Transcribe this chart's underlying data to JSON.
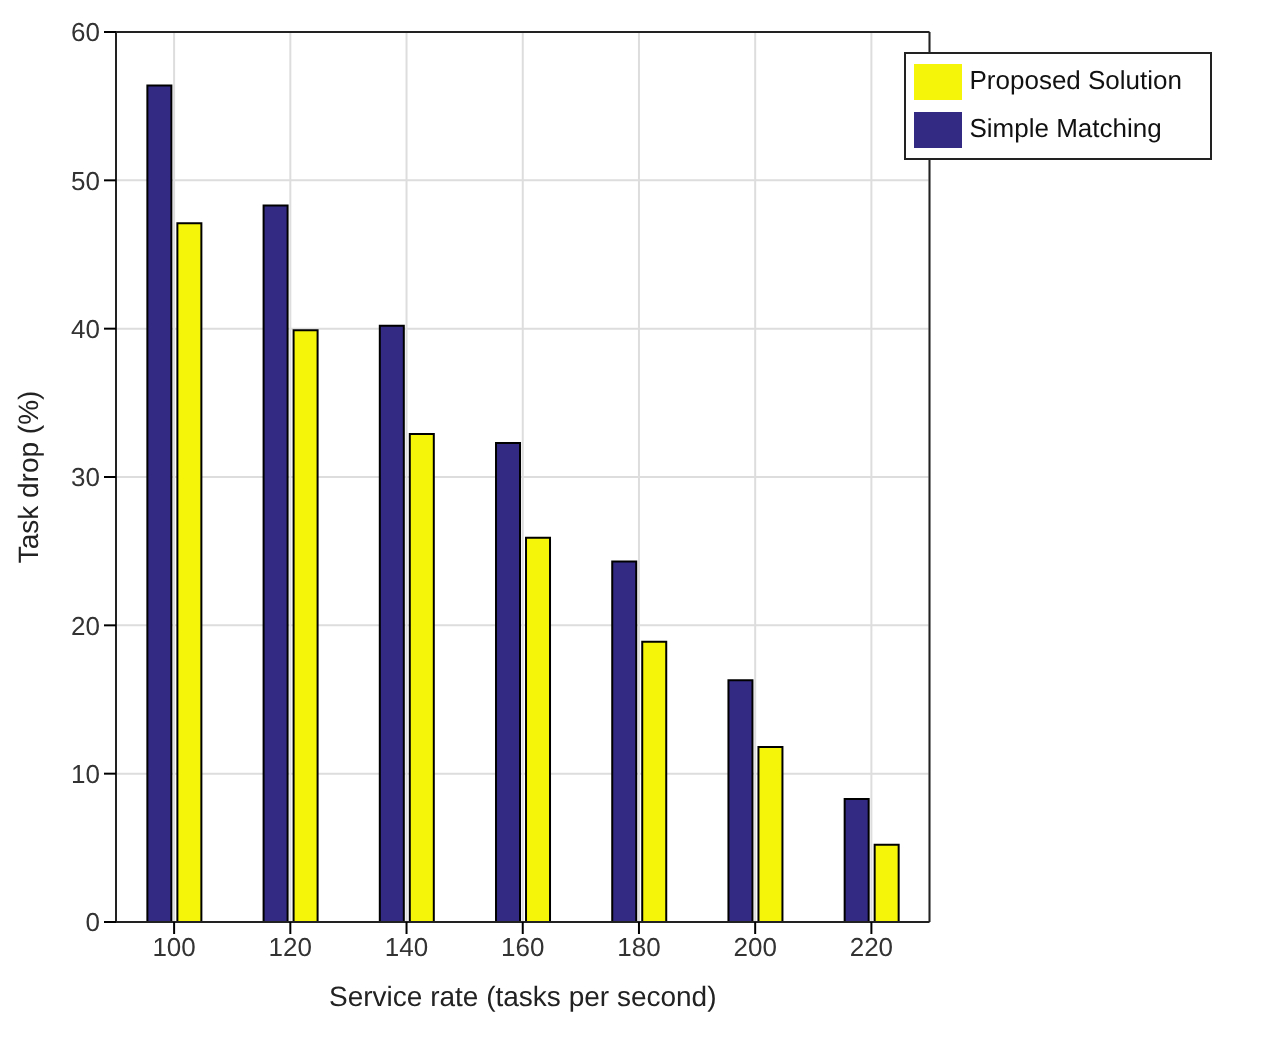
{
  "chart_data": {
    "type": "bar",
    "xlabel": "Service rate (tasks per second)",
    "ylabel": "Task drop (%)",
    "categories": [
      "100",
      "120",
      "140",
      "160",
      "180",
      "200",
      "220"
    ],
    "series": [
      {
        "name": "Simple Matching",
        "color": "#332a84",
        "values": [
          56.4,
          48.3,
          40.2,
          32.3,
          24.3,
          16.3,
          8.3
        ]
      },
      {
        "name": "Proposed Solution",
        "color": "#f5f50a",
        "values": [
          47.1,
          39.9,
          32.9,
          25.9,
          18.9,
          11.8,
          5.2
        ]
      }
    ],
    "ylim": [
      0,
      60
    ],
    "yticks": [
      0,
      10,
      20,
      30,
      40,
      50,
      60
    ],
    "grid": true,
    "legend": "top right"
  }
}
